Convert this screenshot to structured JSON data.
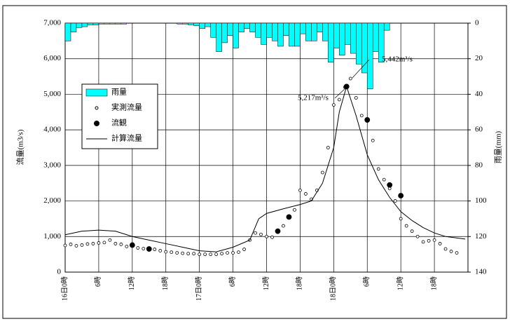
{
  "chart_data": {
    "type": "combo",
    "ylabel": "流量(m3/s)",
    "y2label": "雨量(mm)",
    "xlim": [
      0,
      72
    ],
    "xticks": [
      {
        "value": 0,
        "label": "16日0時"
      },
      {
        "value": 6,
        "label": "6時"
      },
      {
        "value": 12,
        "label": "12時"
      },
      {
        "value": 18,
        "label": "18時"
      },
      {
        "value": 24,
        "label": "17日0時"
      },
      {
        "value": 30,
        "label": "6時"
      },
      {
        "value": 36,
        "label": "12時"
      },
      {
        "value": 42,
        "label": "18時"
      },
      {
        "value": 48,
        "label": "18日0時"
      },
      {
        "value": 54,
        "label": "6時"
      },
      {
        "value": 60,
        "label": "12時"
      },
      {
        "value": 66,
        "label": "18時"
      }
    ],
    "ylim": [
      0,
      7000
    ],
    "yticks": [
      0,
      {
        "value": 1000,
        "label": "1,000"
      },
      {
        "value": 2000,
        "label": "2,000"
      },
      {
        "value": 3000,
        "label": "3,000"
      },
      {
        "value": 4000,
        "label": "4,000"
      },
      {
        "value": 5000,
        "label": "5,000"
      },
      {
        "value": 6000,
        "label": "6,000"
      },
      {
        "value": 7000,
        "label": "7,000"
      }
    ],
    "y2lim": [
      0,
      140
    ],
    "y2_inverted": true,
    "y2ticks": [
      0,
      20,
      40,
      60,
      80,
      100,
      120,
      140
    ],
    "grid": true,
    "series": [
      {
        "name": "雨量",
        "type": "bar",
        "axis": "y2",
        "color": "#00ffff",
        "x": [
          0,
          1,
          2,
          3,
          4,
          5,
          6,
          7,
          8,
          9,
          10,
          20,
          21,
          22,
          23,
          24,
          25,
          26,
          27,
          28,
          29,
          30,
          31,
          32,
          33,
          34,
          35,
          36,
          37,
          38,
          39,
          40,
          41,
          42,
          43,
          44,
          45,
          46,
          47,
          48,
          49,
          50,
          51,
          52,
          53,
          54,
          55,
          56,
          57
        ],
        "values": [
          10,
          5,
          2.5,
          2,
          1,
          1,
          0.5,
          0.5,
          0.5,
          0.5,
          0.5,
          0.5,
          0.5,
          1,
          1.5,
          3,
          2,
          8,
          16,
          11,
          7,
          14,
          5,
          3,
          5,
          8,
          12,
          8,
          10,
          13,
          7,
          13,
          13,
          6,
          10,
          10,
          5,
          10,
          22,
          14,
          18,
          12,
          17,
          23,
          28,
          37,
          16,
          22,
          4
        ]
      },
      {
        "name": "実測流量",
        "type": "scatter",
        "marker": "open",
        "color": "#000000",
        "x": [
          0,
          1,
          2,
          3,
          4,
          5,
          6,
          7,
          8,
          9,
          10,
          11,
          12,
          13,
          14,
          15,
          16,
          17,
          18,
          19,
          20,
          21,
          22,
          23,
          24,
          25,
          26,
          27,
          28,
          29,
          30,
          31,
          32,
          33,
          34,
          35,
          36,
          37,
          38,
          39,
          40,
          41,
          42,
          43,
          44,
          45,
          46,
          47,
          48,
          49,
          50,
          51,
          52,
          53,
          54,
          55,
          56,
          57,
          58,
          59,
          60,
          61,
          62,
          63,
          64,
          65,
          66,
          67,
          68,
          69,
          70
        ],
        "values": [
          750,
          780,
          740,
          760,
          790,
          800,
          820,
          830,
          900,
          800,
          780,
          720,
          760,
          680,
          660,
          660,
          640,
          600,
          570,
          560,
          540,
          530,
          520,
          520,
          500,
          500,
          500,
          500,
          520,
          540,
          540,
          560,
          640,
          900,
          1100,
          1060,
          1000,
          980,
          1150,
          1300,
          1550,
          1750,
          2300,
          2200,
          2050,
          2300,
          2800,
          3500,
          4700,
          4850,
          5200,
          5442,
          4900,
          4400,
          4250,
          3700,
          2900,
          2600,
          2350,
          2000,
          1500,
          1300,
          1150,
          1000,
          850,
          880,
          900,
          800,
          650,
          580,
          540
        ]
      },
      {
        "name": "流観",
        "type": "scatter",
        "marker": "filled",
        "color": "#000000",
        "x": [
          12,
          15,
          38,
          40,
          50.3,
          54,
          58,
          60
        ],
        "values": [
          760,
          650,
          1150,
          1550,
          5217,
          4280,
          2450,
          2150
        ]
      },
      {
        "name": "計算流量",
        "type": "line",
        "color": "#000000",
        "x": [
          0,
          3,
          6,
          9,
          12,
          15,
          18,
          21,
          24,
          27,
          30,
          33,
          34.6,
          36,
          39,
          42,
          44,
          46,
          48,
          49,
          50.3,
          52,
          54,
          56,
          58,
          60,
          62,
          64,
          66,
          68,
          71.5
        ],
        "values": [
          1050,
          1150,
          1180,
          1150,
          1000,
          900,
          800,
          700,
          600,
          570,
          700,
          900,
          1500,
          1650,
          1780,
          1900,
          2000,
          2500,
          3500,
          4500,
          5217,
          4400,
          3300,
          2600,
          2100,
          1700,
          1450,
          1250,
          1100,
          1000,
          930
        ]
      }
    ],
    "annotations": [
      {
        "text": "5,442m³/s"
      },
      {
        "text": "5,217m³/s"
      }
    ]
  }
}
